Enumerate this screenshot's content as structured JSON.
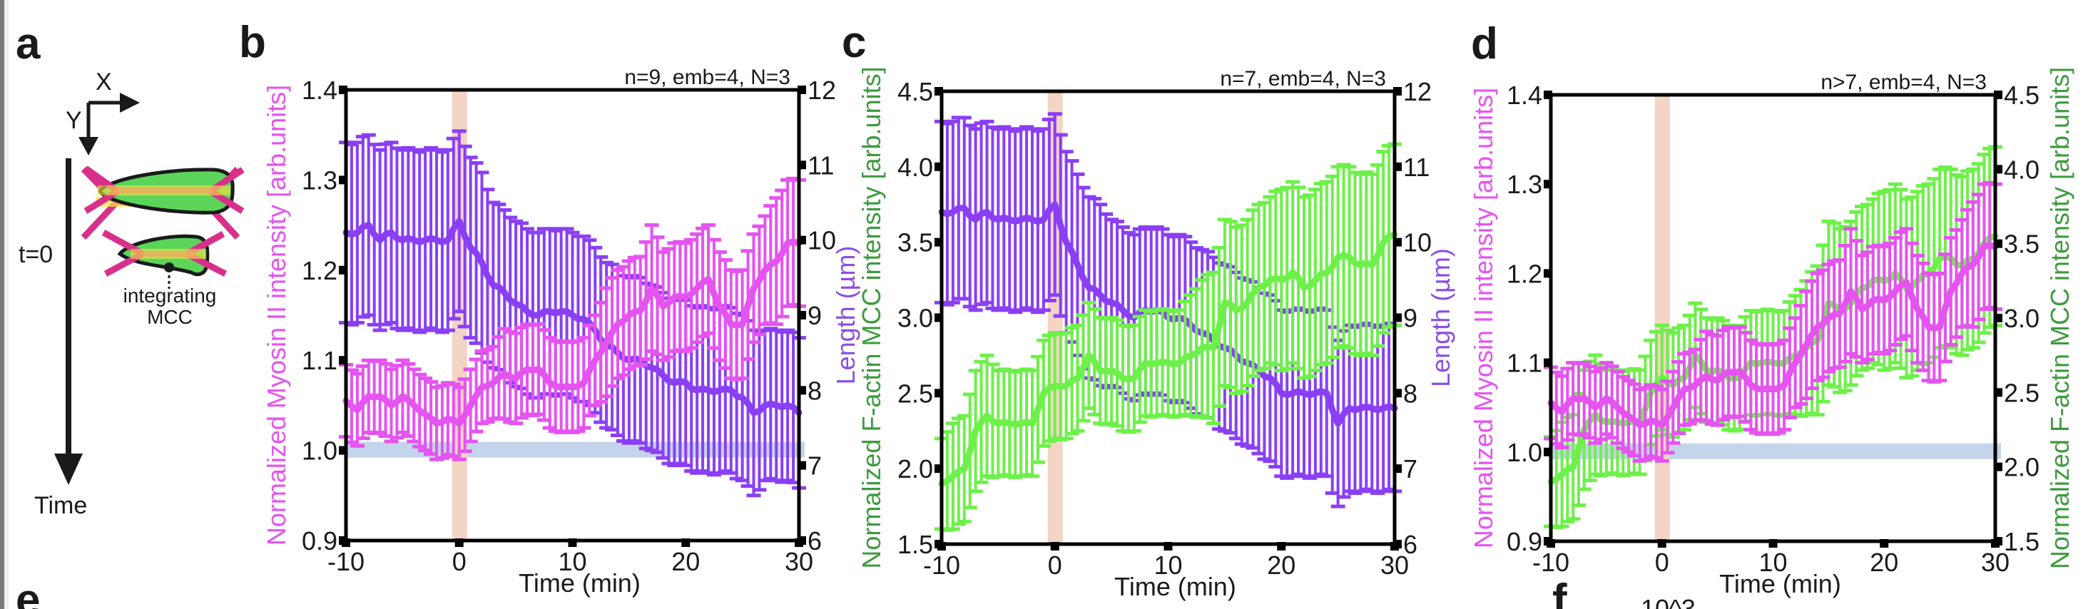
{
  "colors": {
    "myosin": "#e553f0",
    "length": "#8a3ff5",
    "factin": "#6ef04a",
    "factin_label": "#3d9a3d",
    "length_label": "#8a4fe0",
    "baseline_band": "#c4d4ea",
    "t0_band": "#f4d4c4",
    "junction_magenta": "#d8308a",
    "junction_bar": "#f5c060",
    "cell_green": "#5cd45a"
  },
  "panel_a": {
    "label": "a",
    "axis_x_label": "X",
    "axis_y_label": "Y",
    "t0_label": "t=0",
    "time_label": "Time",
    "mcc_label_line1": "integrating",
    "mcc_label_line2": "MCC"
  },
  "panel_e_label": "e",
  "panel_f_label": "f",
  "panel_f_partial_text": "10^3",
  "chart_data": [
    {
      "panel": "b",
      "type": "line",
      "annotation": "n=9, emb=4, N=3",
      "xlabel": "Time (min)",
      "ylabel": "Normalized Myosin II intensity  [arb.units]",
      "y2label": "Length (µm)",
      "xlim": [
        -10,
        30
      ],
      "xticks": [
        "-10",
        "0",
        "10",
        "20",
        "30"
      ],
      "ylim": [
        0.9,
        1.4
      ],
      "yticks": [
        "0.9",
        "1.0",
        "1.1",
        "1.2",
        "1.3",
        "1.4"
      ],
      "y2lim": [
        6,
        12
      ],
      "y2ticks": [
        "6",
        "7",
        "8",
        "9",
        "10",
        "11",
        "12"
      ],
      "baseline_band": 1.0,
      "event_band_x": 0,
      "x": [
        -10,
        -9,
        -8,
        -7,
        -6,
        -5,
        -4,
        -3,
        -2,
        -1,
        0,
        1,
        2,
        3,
        4,
        5,
        6,
        7,
        8,
        9,
        10,
        11,
        12,
        13,
        14,
        15,
        16,
        17,
        18,
        19,
        20,
        21,
        22,
        23,
        24,
        25,
        26,
        27,
        28,
        29,
        30
      ],
      "series": [
        {
          "name": "Length",
          "axis": "right",
          "color_key": "length",
          "values": [
            10.1,
            10.1,
            10.2,
            10.0,
            10.1,
            10.0,
            10.0,
            10.0,
            10.0,
            10.0,
            10.25,
            9.9,
            9.7,
            9.4,
            9.3,
            9.15,
            9.05,
            9.0,
            9.05,
            9.05,
            9.0,
            8.95,
            8.8,
            8.6,
            8.5,
            8.4,
            8.4,
            8.3,
            8.2,
            8.1,
            8.1,
            8.0,
            8.0,
            8.0,
            8.0,
            7.9,
            7.7,
            7.8,
            7.8,
            7.8,
            7.7
          ],
          "error": [
            1.2,
            1.2,
            1.2,
            1.2,
            1.2,
            1.2,
            1.2,
            1.2,
            1.2,
            1.2,
            1.2,
            1.2,
            1.2,
            1.1,
            1.1,
            1.1,
            1.1,
            1.1,
            1.1,
            1.1,
            1.1,
            1.1,
            1.1,
            1.1,
            1.1,
            1.1,
            1.1,
            1.1,
            1.1,
            1.1,
            1.1,
            1.1,
            1.1,
            1.1,
            1.1,
            1.1,
            1.1,
            1.0,
            1.0,
            1.0,
            1.0
          ]
        },
        {
          "name": "Myosin II",
          "axis": "left",
          "color_key": "myosin",
          "values": [
            1.055,
            1.045,
            1.06,
            1.06,
            1.05,
            1.06,
            1.05,
            1.04,
            1.03,
            1.035,
            1.03,
            1.05,
            1.07,
            1.075,
            1.085,
            1.08,
            1.09,
            1.09,
            1.075,
            1.07,
            1.07,
            1.075,
            1.1,
            1.12,
            1.14,
            1.15,
            1.155,
            1.18,
            1.16,
            1.17,
            1.17,
            1.18,
            1.19,
            1.16,
            1.14,
            1.14,
            1.18,
            1.2,
            1.21,
            1.23,
            1.23
          ],
          "error": [
            0.04,
            0.04,
            0.04,
            0.04,
            0.04,
            0.04,
            0.04,
            0.04,
            0.04,
            0.04,
            0.04,
            0.04,
            0.04,
            0.04,
            0.05,
            0.05,
            0.05,
            0.05,
            0.05,
            0.05,
            0.05,
            0.05,
            0.05,
            0.06,
            0.06,
            0.06,
            0.06,
            0.07,
            0.06,
            0.06,
            0.06,
            0.06,
            0.06,
            0.06,
            0.06,
            0.06,
            0.06,
            0.06,
            0.07,
            0.07,
            0.07
          ]
        }
      ]
    },
    {
      "panel": "c",
      "type": "line",
      "annotation": "n=7, emb=4, N=3",
      "xlabel": "Time (min)",
      "ylabel": "Normalized F-actin MCC intensity  [arb.units]",
      "y2label": "Length (µm)",
      "xlim": [
        -10,
        30
      ],
      "xticks": [
        "-10",
        "0",
        "10",
        "20",
        "30"
      ],
      "ylim": [
        1.5,
        4.5
      ],
      "yticks": [
        "1.5",
        "2.0",
        "2.5",
        "3.0",
        "3.5",
        "4.0",
        "4.5"
      ],
      "y2lim": [
        6,
        12
      ],
      "y2ticks": [
        "6",
        "7",
        "8",
        "9",
        "10",
        "11",
        "12"
      ],
      "event_band_x": 0,
      "x": [
        -10,
        -9,
        -8,
        -7,
        -6,
        -5,
        -4,
        -3,
        -2,
        -1,
        0,
        1,
        2,
        3,
        4,
        5,
        6,
        7,
        8,
        9,
        10,
        11,
        12,
        13,
        14,
        15,
        16,
        17,
        18,
        19,
        20,
        21,
        22,
        23,
        24,
        25,
        26,
        27,
        28,
        29,
        30
      ],
      "series": [
        {
          "name": "Length",
          "axis": "right",
          "color_key": "length",
          "values": [
            10.4,
            10.4,
            10.45,
            10.3,
            10.4,
            10.3,
            10.3,
            10.3,
            10.3,
            10.3,
            10.5,
            10.0,
            9.7,
            9.4,
            9.3,
            9.2,
            9.1,
            9.0,
            9.1,
            9.1,
            9.0,
            9.0,
            8.9,
            8.8,
            8.7,
            8.6,
            8.5,
            8.4,
            8.3,
            8.2,
            8.0,
            8.0,
            8.0,
            8.0,
            8.0,
            7.6,
            7.8,
            7.8,
            7.8,
            7.8,
            7.8
          ],
          "error": [
            1.2,
            1.2,
            1.2,
            1.2,
            1.2,
            1.2,
            1.2,
            1.2,
            1.2,
            1.2,
            1.2,
            1.2,
            1.2,
            1.2,
            1.2,
            1.1,
            1.1,
            1.1,
            1.1,
            1.1,
            1.1,
            1.1,
            1.1,
            1.1,
            1.1,
            1.1,
            1.1,
            1.1,
            1.1,
            1.1,
            1.1,
            1.1,
            1.1,
            1.1,
            1.1,
            1.1,
            1.1,
            1.1,
            1.1,
            1.1,
            1.1
          ]
        },
        {
          "name": "F-actin",
          "axis": "left",
          "color_key": "factin",
          "values": [
            1.9,
            1.95,
            2.0,
            2.25,
            2.35,
            2.3,
            2.3,
            2.3,
            2.3,
            2.5,
            2.55,
            2.55,
            2.6,
            2.75,
            2.65,
            2.65,
            2.6,
            2.6,
            2.7,
            2.7,
            2.7,
            2.7,
            2.75,
            2.8,
            2.8,
            3.1,
            3.05,
            3.1,
            3.2,
            3.25,
            3.25,
            3.3,
            3.2,
            3.25,
            3.3,
            3.4,
            3.4,
            3.35,
            3.35,
            3.5,
            3.55
          ],
          "error": [
            0.3,
            0.35,
            0.35,
            0.4,
            0.4,
            0.35,
            0.35,
            0.35,
            0.35,
            0.35,
            0.35,
            0.35,
            0.35,
            0.35,
            0.35,
            0.35,
            0.35,
            0.35,
            0.35,
            0.35,
            0.35,
            0.35,
            0.4,
            0.45,
            0.5,
            0.55,
            0.55,
            0.55,
            0.55,
            0.55,
            0.6,
            0.6,
            0.6,
            0.6,
            0.6,
            0.6,
            0.6,
            0.6,
            0.6,
            0.6,
            0.6
          ]
        }
      ]
    },
    {
      "panel": "d",
      "type": "line",
      "annotation": "n>7, emb=4, N=3",
      "xlabel": "Time (min)",
      "ylabel": "Normalized Myosin II intensity  [arb.units]",
      "y2label": "Normalized F-actin MCC intensity  [arb.units]",
      "xlim": [
        -10,
        30
      ],
      "xticks": [
        "-10",
        "0",
        "10",
        "20",
        "30"
      ],
      "ylim": [
        0.9,
        1.4
      ],
      "yticks": [
        "0.9",
        "1.0",
        "1.1",
        "1.2",
        "1.3",
        "1.4"
      ],
      "y2lim": [
        1.5,
        4.5
      ],
      "y2ticks": [
        "1.5",
        "2.0",
        "2.5",
        "3.0",
        "3.5",
        "4.0",
        "4.5"
      ],
      "baseline_band": 1.0,
      "event_band_x": 0,
      "x": [
        -10,
        -9,
        -8,
        -7,
        -6,
        -5,
        -4,
        -3,
        -2,
        -1,
        0,
        1,
        2,
        3,
        4,
        5,
        6,
        7,
        8,
        9,
        10,
        11,
        12,
        13,
        14,
        15,
        16,
        17,
        18,
        19,
        20,
        21,
        22,
        23,
        24,
        25,
        26,
        27,
        28,
        29,
        30
      ],
      "series": [
        {
          "name": "F-actin",
          "axis": "right",
          "color_key": "factin",
          "values": [
            1.9,
            1.95,
            2.0,
            2.25,
            2.35,
            2.3,
            2.3,
            2.3,
            2.3,
            2.5,
            2.6,
            2.55,
            2.6,
            2.75,
            2.65,
            2.65,
            2.6,
            2.6,
            2.7,
            2.7,
            2.7,
            2.7,
            2.75,
            2.8,
            2.85,
            3.1,
            3.05,
            3.1,
            3.2,
            3.25,
            3.25,
            3.3,
            3.2,
            3.25,
            3.3,
            3.4,
            3.4,
            3.35,
            3.4,
            3.5,
            3.55
          ],
          "error": [
            0.3,
            0.35,
            0.35,
            0.4,
            0.4,
            0.35,
            0.35,
            0.35,
            0.35,
            0.35,
            0.35,
            0.35,
            0.35,
            0.35,
            0.35,
            0.35,
            0.35,
            0.35,
            0.35,
            0.35,
            0.35,
            0.35,
            0.4,
            0.45,
            0.5,
            0.55,
            0.55,
            0.55,
            0.55,
            0.55,
            0.6,
            0.6,
            0.6,
            0.6,
            0.6,
            0.6,
            0.6,
            0.6,
            0.6,
            0.6,
            0.6
          ]
        },
        {
          "name": "Myosin II",
          "axis": "left",
          "color_key": "myosin",
          "values": [
            1.055,
            1.045,
            1.06,
            1.06,
            1.05,
            1.06,
            1.05,
            1.04,
            1.03,
            1.035,
            1.03,
            1.05,
            1.07,
            1.075,
            1.085,
            1.08,
            1.09,
            1.09,
            1.075,
            1.07,
            1.07,
            1.075,
            1.1,
            1.12,
            1.14,
            1.15,
            1.155,
            1.18,
            1.16,
            1.17,
            1.17,
            1.18,
            1.19,
            1.16,
            1.14,
            1.14,
            1.18,
            1.2,
            1.21,
            1.23,
            1.23
          ],
          "error": [
            0.04,
            0.04,
            0.04,
            0.04,
            0.04,
            0.04,
            0.04,
            0.04,
            0.04,
            0.04,
            0.04,
            0.04,
            0.04,
            0.04,
            0.05,
            0.05,
            0.05,
            0.05,
            0.05,
            0.05,
            0.05,
            0.05,
            0.05,
            0.06,
            0.06,
            0.06,
            0.06,
            0.07,
            0.06,
            0.06,
            0.06,
            0.06,
            0.06,
            0.06,
            0.06,
            0.06,
            0.06,
            0.06,
            0.07,
            0.07,
            0.07
          ]
        }
      ]
    }
  ]
}
